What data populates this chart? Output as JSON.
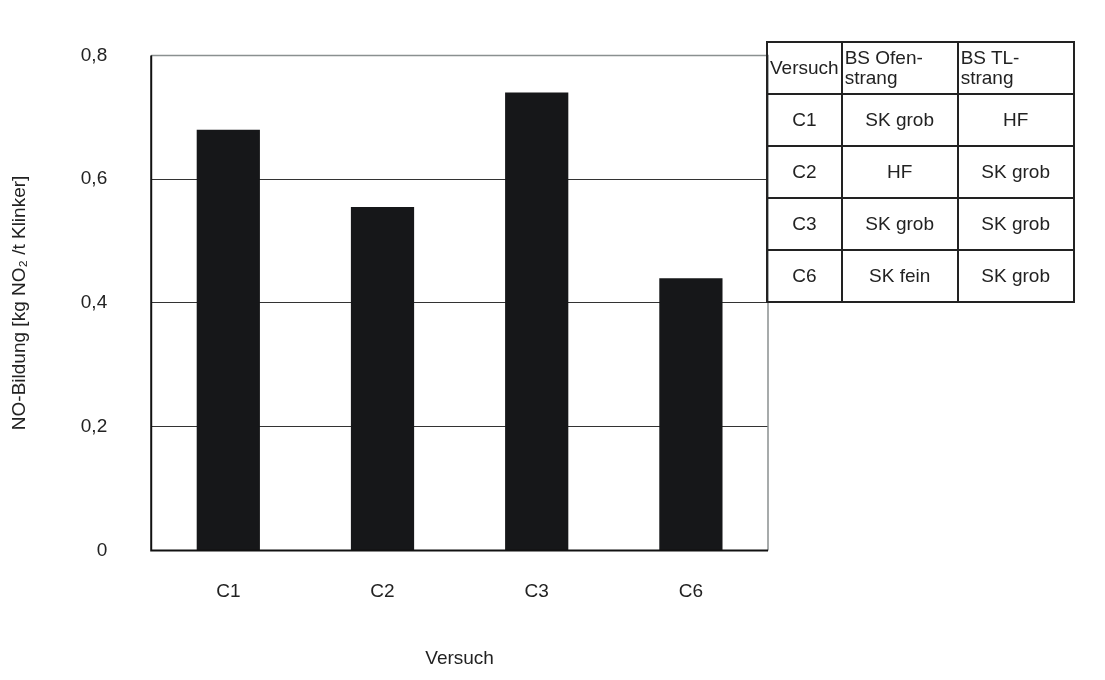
{
  "chart_data": {
    "type": "bar",
    "xlabel": "Versuch",
    "ylabel": "NO-Bildung [kg NO₂ /t Klinker]",
    "categories": [
      "C1",
      "C2",
      "C3",
      "C6"
    ],
    "values": [
      0.68,
      0.555,
      0.74,
      0.44
    ],
    "color": "#161719",
    "ylim": [
      0,
      0.8
    ],
    "yticks": [
      {
        "value": 0,
        "label": "0"
      },
      {
        "value": 0.2,
        "label": "0,2"
      },
      {
        "value": 0.4,
        "label": "0,4"
      },
      {
        "value": 0.6,
        "label": "0,6"
      },
      {
        "value": 0.8,
        "label": "0,8"
      }
    ],
    "grid": "y",
    "legend": false,
    "annotations": [
      "Versuch",
      "BS Ofen-\nstrang",
      "BS  TL-\nstrang",
      "C1",
      "SK grob",
      "HF",
      "C2",
      "HF",
      "SK grob",
      "C3",
      "SK grob",
      "SK grob",
      "C6",
      "SK fein",
      "SK grob"
    ]
  }
}
